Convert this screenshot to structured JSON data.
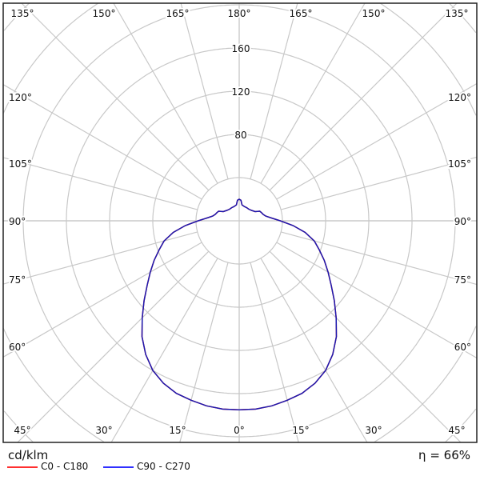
{
  "chart_data": {
    "type": "polar",
    "unit_label": "cd/klm",
    "efficiency": "η = 66%",
    "radial_ticks": [
      80,
      120,
      160
    ],
    "ring_step": 40,
    "angle_labels": {
      "top": [
        "135°",
        "150°",
        "165°",
        "180°",
        "165°",
        "150°",
        "135°"
      ],
      "left": [
        "120°",
        "105°",
        "90°",
        "75°",
        "60°"
      ],
      "right": [
        "120°",
        "105°",
        "90°",
        "75°",
        "60°"
      ],
      "bottom": [
        "45°",
        "30°",
        "15°",
        "0°",
        "15°",
        "30°",
        "45°"
      ]
    },
    "grid": true,
    "angles": [
      0,
      5,
      10,
      15,
      20,
      25,
      30,
      35,
      40,
      45,
      50,
      55,
      60,
      65,
      70,
      75,
      80,
      85,
      90,
      95,
      100,
      105,
      110,
      115,
      120,
      130,
      140,
      150,
      160,
      170,
      175,
      180
    ],
    "series": [
      {
        "name": "C0 - C180",
        "color": "#ff2020",
        "values": [
          175,
          175,
          174,
          172,
          170,
          166,
          160,
          151,
          140,
          127,
          115,
          104,
          95,
          87,
          79,
          72,
          62,
          50,
          38,
          30,
          25,
          23,
          22,
          21,
          17,
          15,
          14,
          14,
          14,
          15,
          19,
          20
        ]
      },
      {
        "name": "C90 - C270",
        "color": "#1a1ab0",
        "values": [
          175,
          175,
          174,
          172,
          170,
          166,
          160,
          151,
          140,
          127,
          115,
          104,
          95,
          87,
          79,
          72,
          62,
          50,
          38,
          30,
          25,
          23,
          22,
          21,
          17,
          15,
          14,
          14,
          14,
          15,
          19,
          20
        ]
      }
    ],
    "legend_colors": [
      "#ff3030",
      "#3030ff"
    ]
  }
}
